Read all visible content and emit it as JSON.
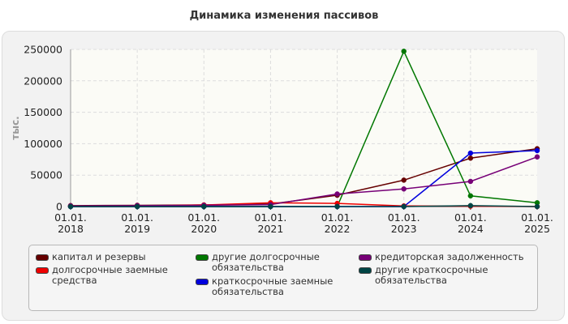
{
  "chart_data": {
    "type": "line",
    "title": "Динамика изменения пассивов",
    "ylabel": "тыс.",
    "xlabel": "",
    "ylim": [
      0,
      250000
    ],
    "yticks": [
      "0",
      "50000",
      "100000",
      "150000",
      "200000",
      "250000"
    ],
    "categories": [
      "01.01.\n2018",
      "01.01.\n2019",
      "01.01.\n2020",
      "01.01.\n2021",
      "01.01.\n2022",
      "01.01.\n2023",
      "01.01.\n2024",
      "01.01.\n2025"
    ],
    "grid": true,
    "legend_position": "bottom",
    "series": [
      {
        "name": "капитал и резервы",
        "color": "#660000",
        "values": [
          1500,
          2000,
          2500,
          4000,
          18000,
          42000,
          77000,
          92000
        ]
      },
      {
        "name": "долгосрочные заемные\nсредства",
        "color": "#ee0000",
        "values": [
          500,
          1000,
          2500,
          6000,
          5000,
          1000,
          500,
          0
        ]
      },
      {
        "name": "другие долгосрочные\nобязательства",
        "color": "#007700",
        "values": [
          0,
          0,
          0,
          0,
          0,
          247000,
          17000,
          6000
        ]
      },
      {
        "name": "краткосрочные заемные\nобязательства",
        "color": "#0000dd",
        "values": [
          0,
          0,
          0,
          0,
          0,
          0,
          85000,
          89000
        ]
      },
      {
        "name": "кредиторская задолженность",
        "color": "#770077",
        "values": [
          1000,
          1500,
          2000,
          3000,
          20000,
          28000,
          40000,
          79000
        ]
      },
      {
        "name": "другие краткосрочные\nобязательства",
        "color": "#004444",
        "values": [
          0,
          0,
          0,
          0,
          0,
          0,
          1500,
          0
        ]
      }
    ]
  }
}
